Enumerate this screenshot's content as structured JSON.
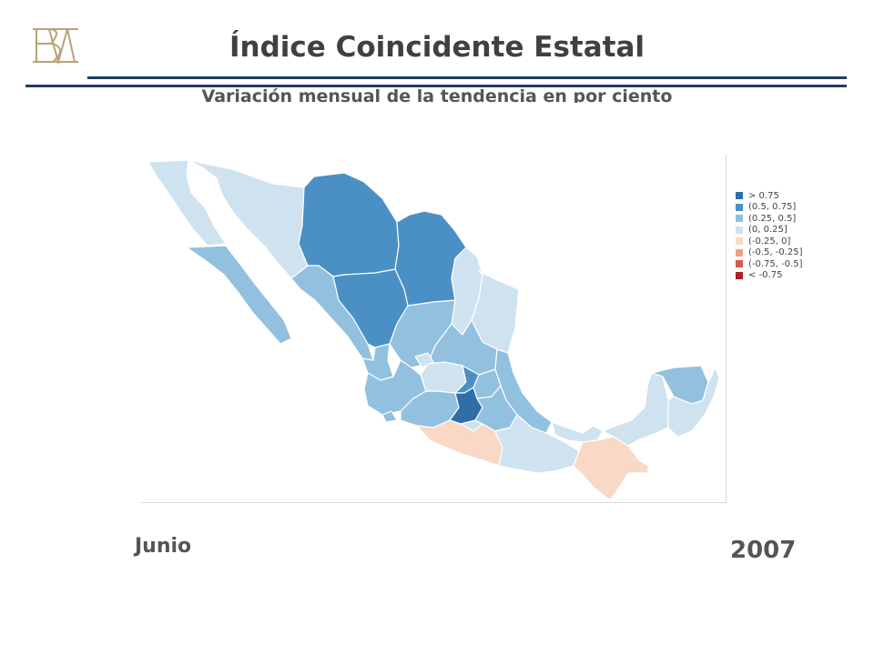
{
  "header": {
    "title": "Índice Coincidente Estatal",
    "subtitle": "Variación mensual de la tendencia en por ciento"
  },
  "colors": {
    "rule": "#1f3e5e",
    "logo": "#b8a27a"
  },
  "legend": [
    {
      "label": "> 0.75",
      "color": "#2f6ea6"
    },
    {
      "label": "(0.5, 0.75]",
      "color": "#4a90c4"
    },
    {
      "label": "(0.25, 0.5]",
      "color": "#92c0df"
    },
    {
      "label": "(0, 0.25]",
      "color": "#cfe2ef"
    },
    {
      "label": "(-0.25, 0]",
      "color": "#f9d8c6"
    },
    {
      "label": "(-0.5, -0.25]",
      "color": "#eea07e"
    },
    {
      "label": "(-0.75, -0.5]",
      "color": "#d45a4e"
    },
    {
      "label": "< -0.75",
      "color": "#b11f2b"
    }
  ],
  "footer": {
    "month": "Junio",
    "year": "2007"
  }
}
